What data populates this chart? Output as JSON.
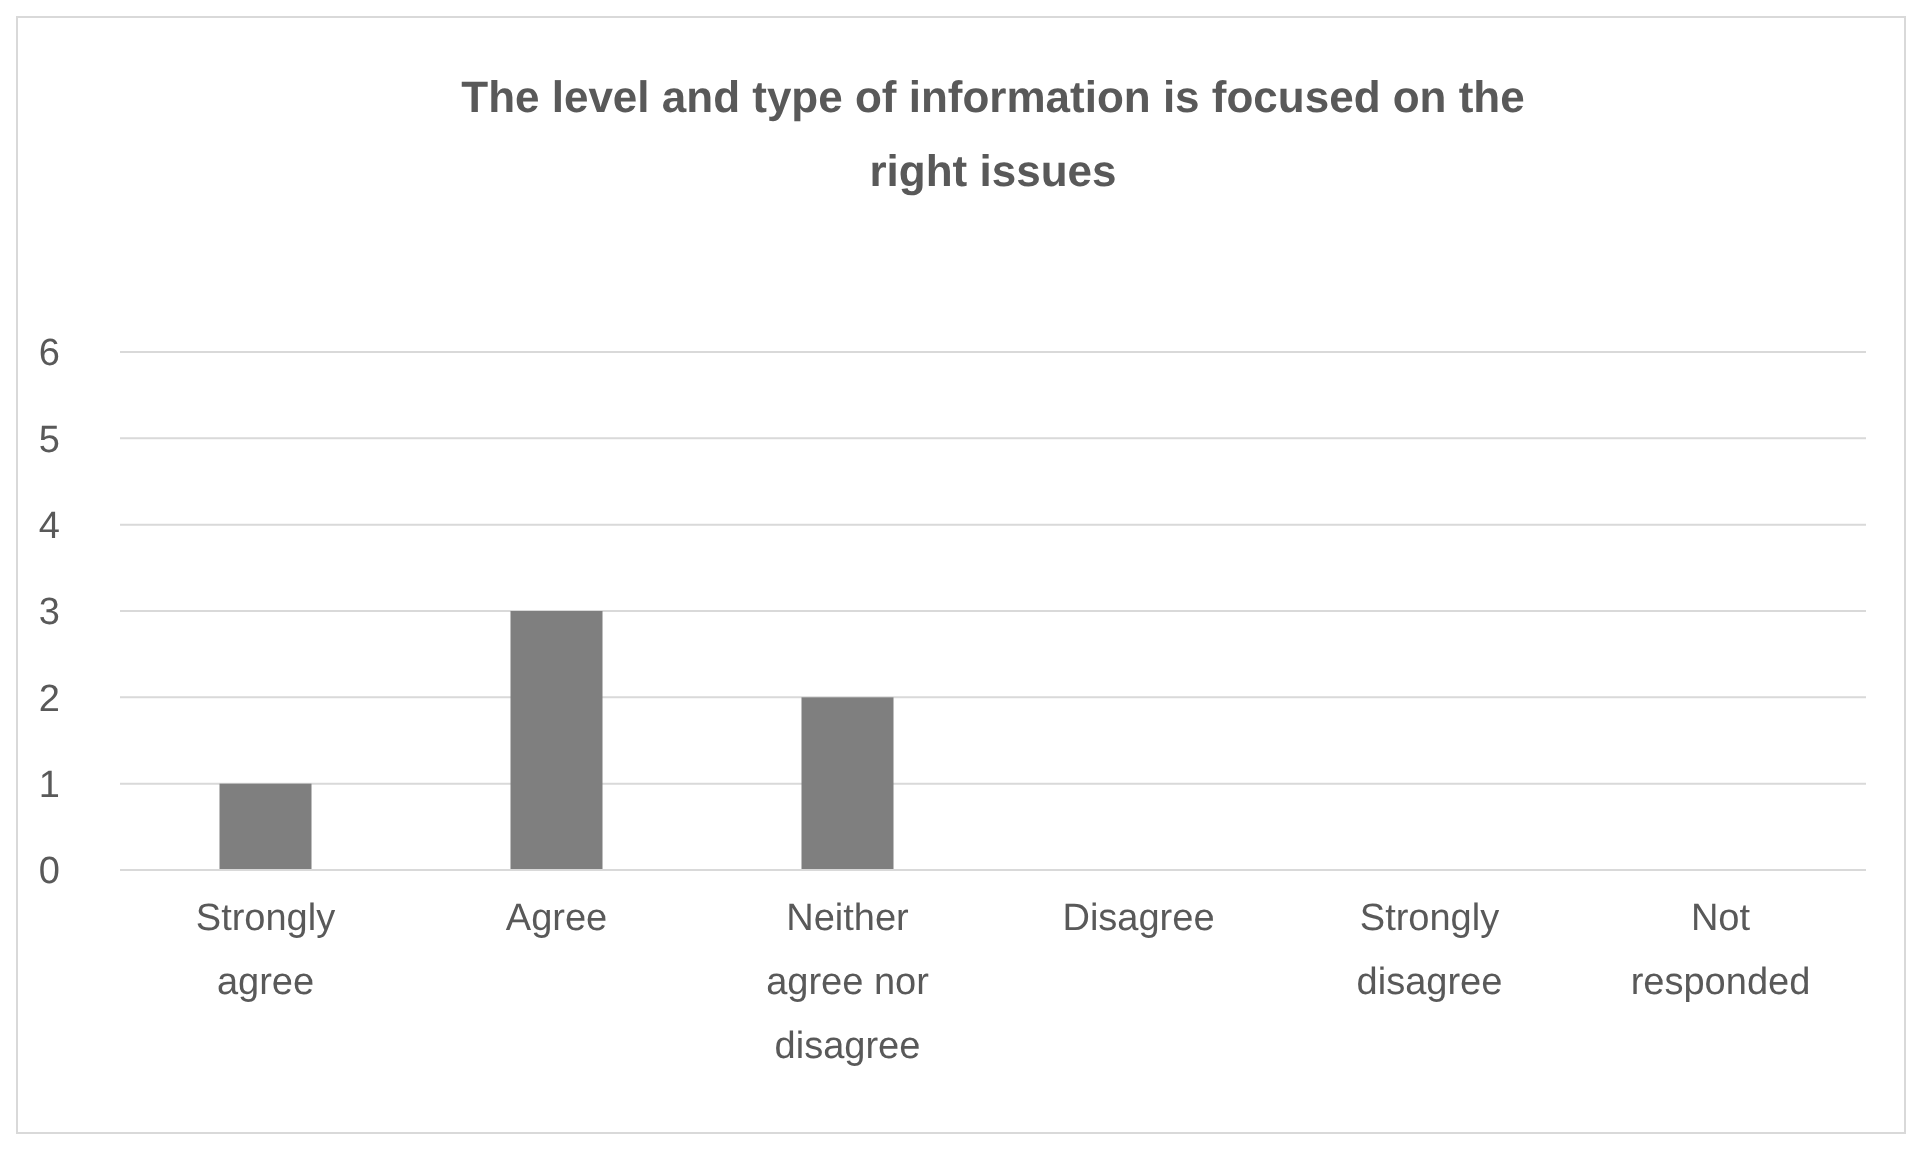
{
  "chart_data": {
    "type": "bar",
    "title": "The level and type of information is focused on the right issues",
    "categories": [
      "Strongly agree",
      "Agree",
      "Neither agree nor disagree",
      "Disagree",
      "Strongly disagree",
      "Not responded"
    ],
    "values": [
      1,
      3,
      2,
      0,
      0,
      0
    ],
    "color": "#7f7f7f",
    "ylim": [
      0,
      6
    ],
    "yticks": [
      0,
      1,
      2,
      3,
      4,
      5,
      6
    ],
    "grid": "y"
  }
}
